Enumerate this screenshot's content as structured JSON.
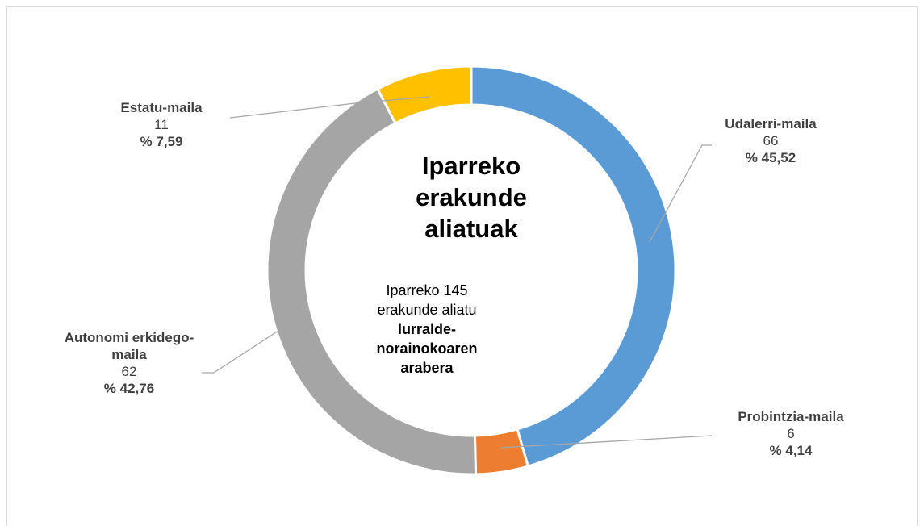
{
  "chart_data": {
    "type": "pie",
    "donut": true,
    "title": "Iparreko erakunde aliatuak",
    "subtitle": {
      "text": "Iparreko 145 erakunde aliatu",
      "bold": "lurralde-norainokoaren arabera"
    },
    "categories": [
      "Udalerri-maila",
      "Probintzia-maila",
      "Autonomi erkidego-maila",
      "Estatu-maila"
    ],
    "values": [
      66,
      6,
      62,
      11
    ],
    "percent_labels": [
      "% 45,52",
      "% 4,14",
      "% 42,76",
      "% 7,59"
    ],
    "colors": [
      "#5b9bd5",
      "#ed7d31",
      "#a5a5a5",
      "#ffc000"
    ]
  }
}
